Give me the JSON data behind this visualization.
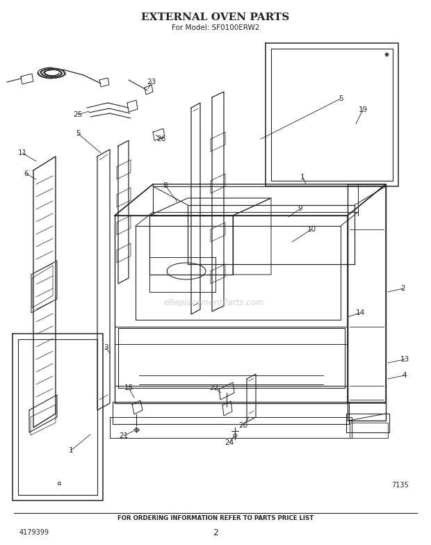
{
  "title": "EXTERNAL OVEN PARTS",
  "subtitle": "For Model: SF0100ERW2",
  "footer_text": "FOR ORDERING INFORMATION REFER TO PARTS PRICE LIST",
  "bottom_left": "4179399",
  "bottom_center": "2",
  "bottom_right": "7135",
  "watermark": "eReplacementParts.com",
  "bg_color": "#ffffff",
  "line_color": "#222222",
  "text_color": "#222222",
  "figsize": [
    6.2,
    7.84
  ],
  "dpi": 100
}
